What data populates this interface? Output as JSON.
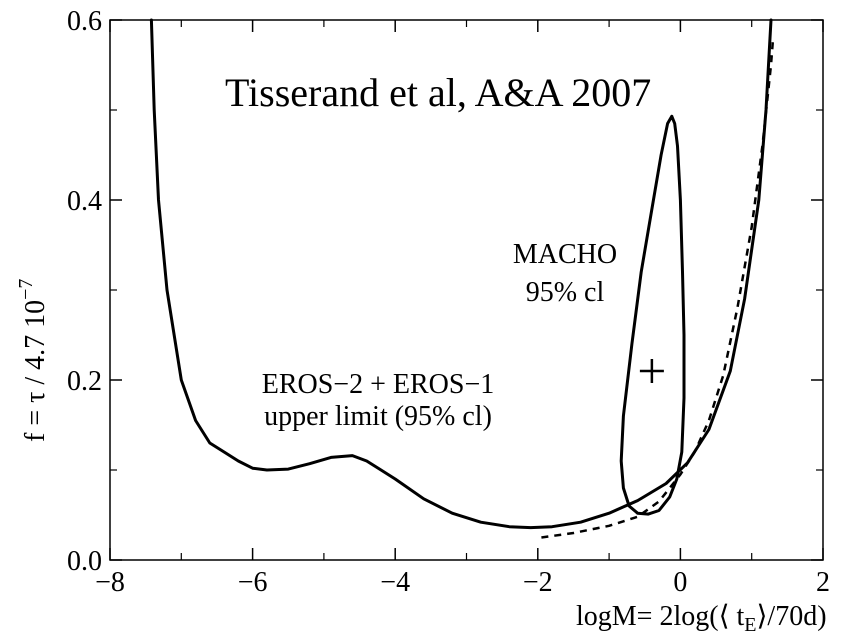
{
  "chart_data": {
    "type": "line",
    "title": "",
    "xlabel": "logM= 2log(⟨ t_E ⟩/70d)",
    "xlabel_parts": {
      "main": "logM= 2log(⟨ t",
      "sub": "E",
      "tail": "⟩/70d)"
    },
    "ylabel": "f =  τ / 4.7 10",
    "ylabel_exponent": "−7",
    "xlim": [
      -8,
      2
    ],
    "ylim": [
      0.0,
      0.6
    ],
    "x_ticks": [
      {
        "value": -8,
        "label": "−8"
      },
      {
        "value": -6,
        "label": "−6"
      },
      {
        "value": -4,
        "label": "−4"
      },
      {
        "value": -2,
        "label": "−2"
      },
      {
        "value": 0,
        "label": "0"
      },
      {
        "value": 2,
        "label": "2"
      }
    ],
    "y_ticks": [
      {
        "value": 0.0,
        "label": "0.0"
      },
      {
        "value": 0.2,
        "label": "0.2"
      },
      {
        "value": 0.4,
        "label": "0.4"
      },
      {
        "value": 0.6,
        "label": "0.6"
      }
    ],
    "y_minor_ticks": [
      0.1,
      0.3,
      0.5
    ],
    "x_minor_ticks": [
      -7,
      -5,
      -3,
      -1,
      1
    ],
    "grid": false,
    "annotations": {
      "reference": "Tisserand et al, A&A 2007",
      "eros_line1": "EROS−2 + EROS−1",
      "eros_line2": "upper limit (95% cl)",
      "macho_line1": "MACHO",
      "macho_line2": "95% cl"
    },
    "series": [
      {
        "style": "solid",
        "points": [
          [
            -7.42,
            0.6
          ],
          [
            -7.38,
            0.5
          ],
          [
            -7.32,
            0.4
          ],
          [
            -7.2,
            0.3
          ],
          [
            -7.0,
            0.2
          ],
          [
            -6.8,
            0.155
          ],
          [
            -6.6,
            0.13
          ],
          [
            -6.4,
            0.12
          ],
          [
            -6.2,
            0.11
          ],
          [
            -6.0,
            0.102
          ],
          [
            -5.8,
            0.1
          ],
          [
            -5.5,
            0.101
          ],
          [
            -5.2,
            0.107
          ],
          [
            -4.9,
            0.114
          ],
          [
            -4.6,
            0.116
          ],
          [
            -4.4,
            0.11
          ],
          [
            -4.0,
            0.09
          ],
          [
            -3.6,
            0.068
          ],
          [
            -3.2,
            0.052
          ],
          [
            -2.8,
            0.042
          ],
          [
            -2.4,
            0.037
          ],
          [
            -2.1,
            0.036
          ],
          [
            -1.8,
            0.037
          ],
          [
            -1.4,
            0.042
          ],
          [
            -1.0,
            0.052
          ],
          [
            -0.6,
            0.066
          ],
          [
            -0.2,
            0.085
          ],
          [
            0.1,
            0.108
          ],
          [
            0.4,
            0.145
          ],
          [
            0.7,
            0.21
          ],
          [
            0.9,
            0.29
          ],
          [
            1.1,
            0.4
          ],
          [
            1.2,
            0.5
          ],
          [
            1.27,
            0.6
          ]
        ]
      },
      {
        "style": "dashed",
        "points": [
          [
            -1.95,
            0.025
          ],
          [
            -1.5,
            0.03
          ],
          [
            -1.0,
            0.038
          ],
          [
            -0.6,
            0.048
          ],
          [
            -0.3,
            0.065
          ],
          [
            0.0,
            0.095
          ],
          [
            0.2,
            0.12
          ],
          [
            0.4,
            0.155
          ],
          [
            0.6,
            0.205
          ],
          [
            0.8,
            0.28
          ],
          [
            1.0,
            0.37
          ],
          [
            1.15,
            0.46
          ],
          [
            1.27,
            0.55
          ],
          [
            1.3,
            0.58
          ]
        ]
      },
      {
        "style": "solid-closed",
        "points": [
          [
            -0.12,
            0.493
          ],
          [
            -0.08,
            0.485
          ],
          [
            -0.04,
            0.46
          ],
          [
            0.0,
            0.4
          ],
          [
            0.03,
            0.32
          ],
          [
            0.05,
            0.25
          ],
          [
            0.05,
            0.18
          ],
          [
            0.02,
            0.12
          ],
          [
            -0.05,
            0.09
          ],
          [
            -0.15,
            0.07
          ],
          [
            -0.3,
            0.055
          ],
          [
            -0.45,
            0.051
          ],
          [
            -0.6,
            0.052
          ],
          [
            -0.72,
            0.06
          ],
          [
            -0.8,
            0.08
          ],
          [
            -0.83,
            0.11
          ],
          [
            -0.8,
            0.16
          ],
          [
            -0.68,
            0.24
          ],
          [
            -0.55,
            0.32
          ],
          [
            -0.4,
            0.39
          ],
          [
            -0.27,
            0.45
          ],
          [
            -0.18,
            0.485
          ],
          [
            -0.12,
            0.493
          ]
        ]
      }
    ],
    "marker": {
      "x": -0.4,
      "y": 0.21,
      "symbol": "+"
    }
  }
}
